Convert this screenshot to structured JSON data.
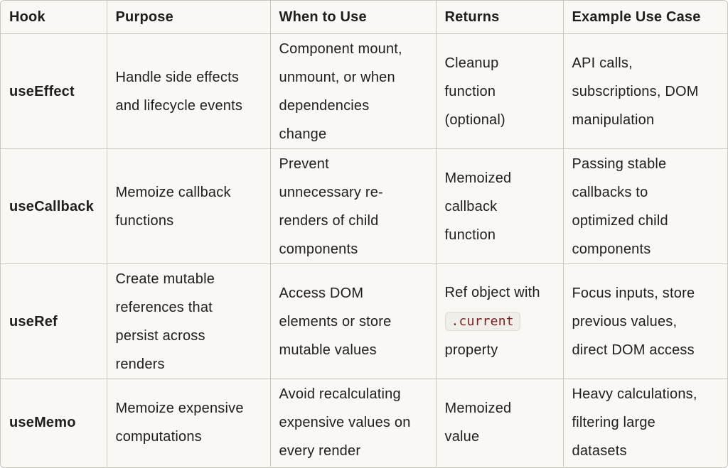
{
  "headers": [
    "Hook",
    "Purpose",
    "When to Use",
    "Returns",
    "Example Use Case"
  ],
  "rows": [
    {
      "hook": "useEffect",
      "purpose": [
        "Handle side effects",
        "and lifecycle events"
      ],
      "when": [
        "Component mount,",
        "unmount, or when",
        "dependencies",
        "change"
      ],
      "returns": [
        "Cleanup",
        "function",
        "(optional)"
      ],
      "example": [
        "API calls,",
        "subscriptions, DOM",
        "manipulation"
      ]
    },
    {
      "hook": "useCallback",
      "purpose": [
        "Memoize callback",
        "functions"
      ],
      "when": [
        "Prevent",
        "unnecessary re-",
        "renders of child",
        "components"
      ],
      "returns": [
        "Memoized",
        "callback",
        "function"
      ],
      "example": [
        "Passing stable",
        "callbacks to",
        "optimized child",
        "components"
      ]
    },
    {
      "hook": "useRef",
      "purpose": [
        "Create mutable",
        "references that",
        "persist across",
        "renders"
      ],
      "when": [
        "Access DOM",
        "elements or store",
        "mutable values"
      ],
      "returns": [
        "Ref object with",
        ".current",
        "property"
      ],
      "returns_code_line": 1,
      "example": [
        "Focus inputs, store",
        "previous values,",
        "direct DOM access"
      ]
    },
    {
      "hook": "useMemo",
      "purpose": [
        "Memoize expensive",
        "computations"
      ],
      "when": [
        "Avoid recalculating",
        "expensive values on",
        "every render"
      ],
      "returns": [
        "Memoized",
        "value"
      ],
      "example": [
        "Heavy calculations,",
        "filtering large",
        "datasets"
      ]
    }
  ]
}
